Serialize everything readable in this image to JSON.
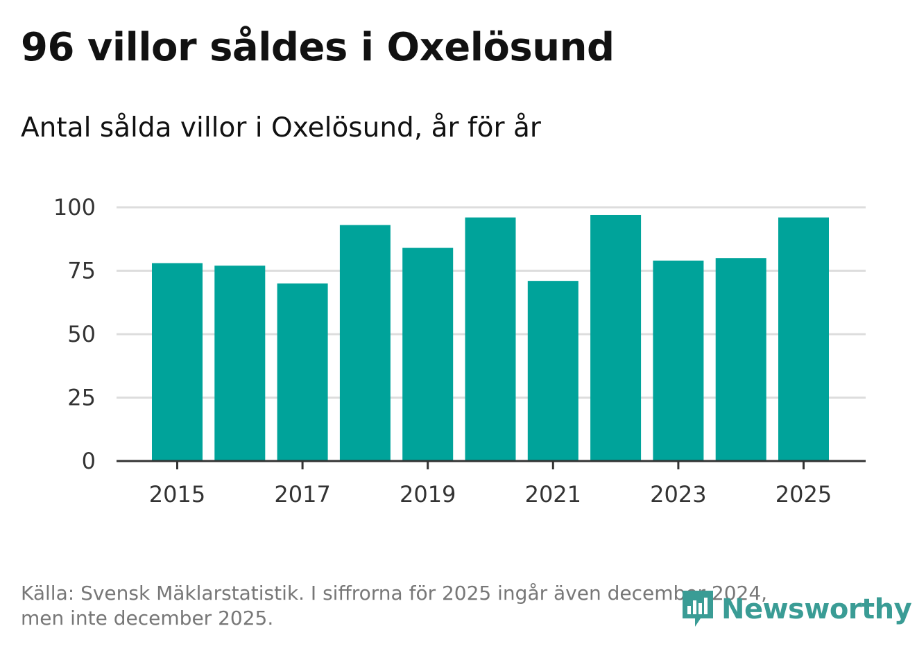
{
  "header": {
    "title": "96 villor såldes i Oxelösund",
    "subtitle": "Antal sålda villor i Oxelösund, år för år"
  },
  "footer": {
    "source_line1": "Källa: Svensk Mäklarstatistik. I siffrorna för 2025 ingår även december 2024,",
    "source_line2": "men inte december 2025."
  },
  "brand": {
    "name": "Newsworthy",
    "color": "#3a9c95",
    "icon": "bar-chart-speech-bubble-icon"
  },
  "colors": {
    "bar": "#00a39a",
    "grid": "#dddddd",
    "axis": "#333333"
  },
  "chart_data": {
    "type": "bar",
    "title": "Antal sålda villor i Oxelösund, år för år",
    "xlabel": "",
    "ylabel": "",
    "categories": [
      "2015",
      "2016",
      "2017",
      "2018",
      "2019",
      "2020",
      "2021",
      "2022",
      "2023",
      "2024",
      "2025"
    ],
    "values": [
      78,
      77,
      70,
      93,
      84,
      96,
      71,
      97,
      79,
      80,
      96
    ],
    "ylim": [
      0,
      100
    ],
    "yticks": [
      0,
      25,
      50,
      75,
      100
    ],
    "xticks": [
      "2015",
      "2017",
      "2019",
      "2021",
      "2023",
      "2025"
    ],
    "grid": true,
    "legend": "none"
  }
}
